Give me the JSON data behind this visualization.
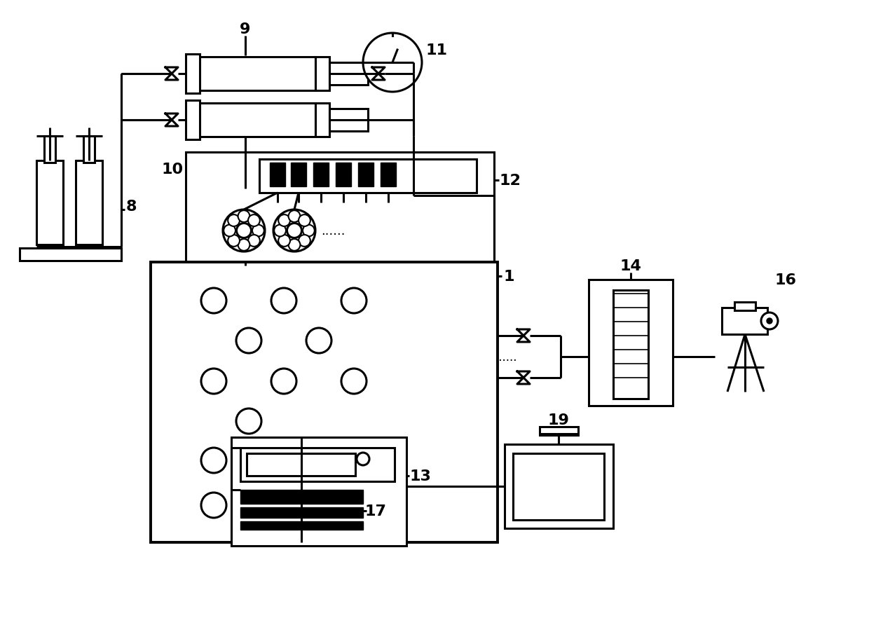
{
  "bg_color": "#ffffff",
  "lc": "#000000",
  "lw": 2.2,
  "lw_thick": 2.8
}
